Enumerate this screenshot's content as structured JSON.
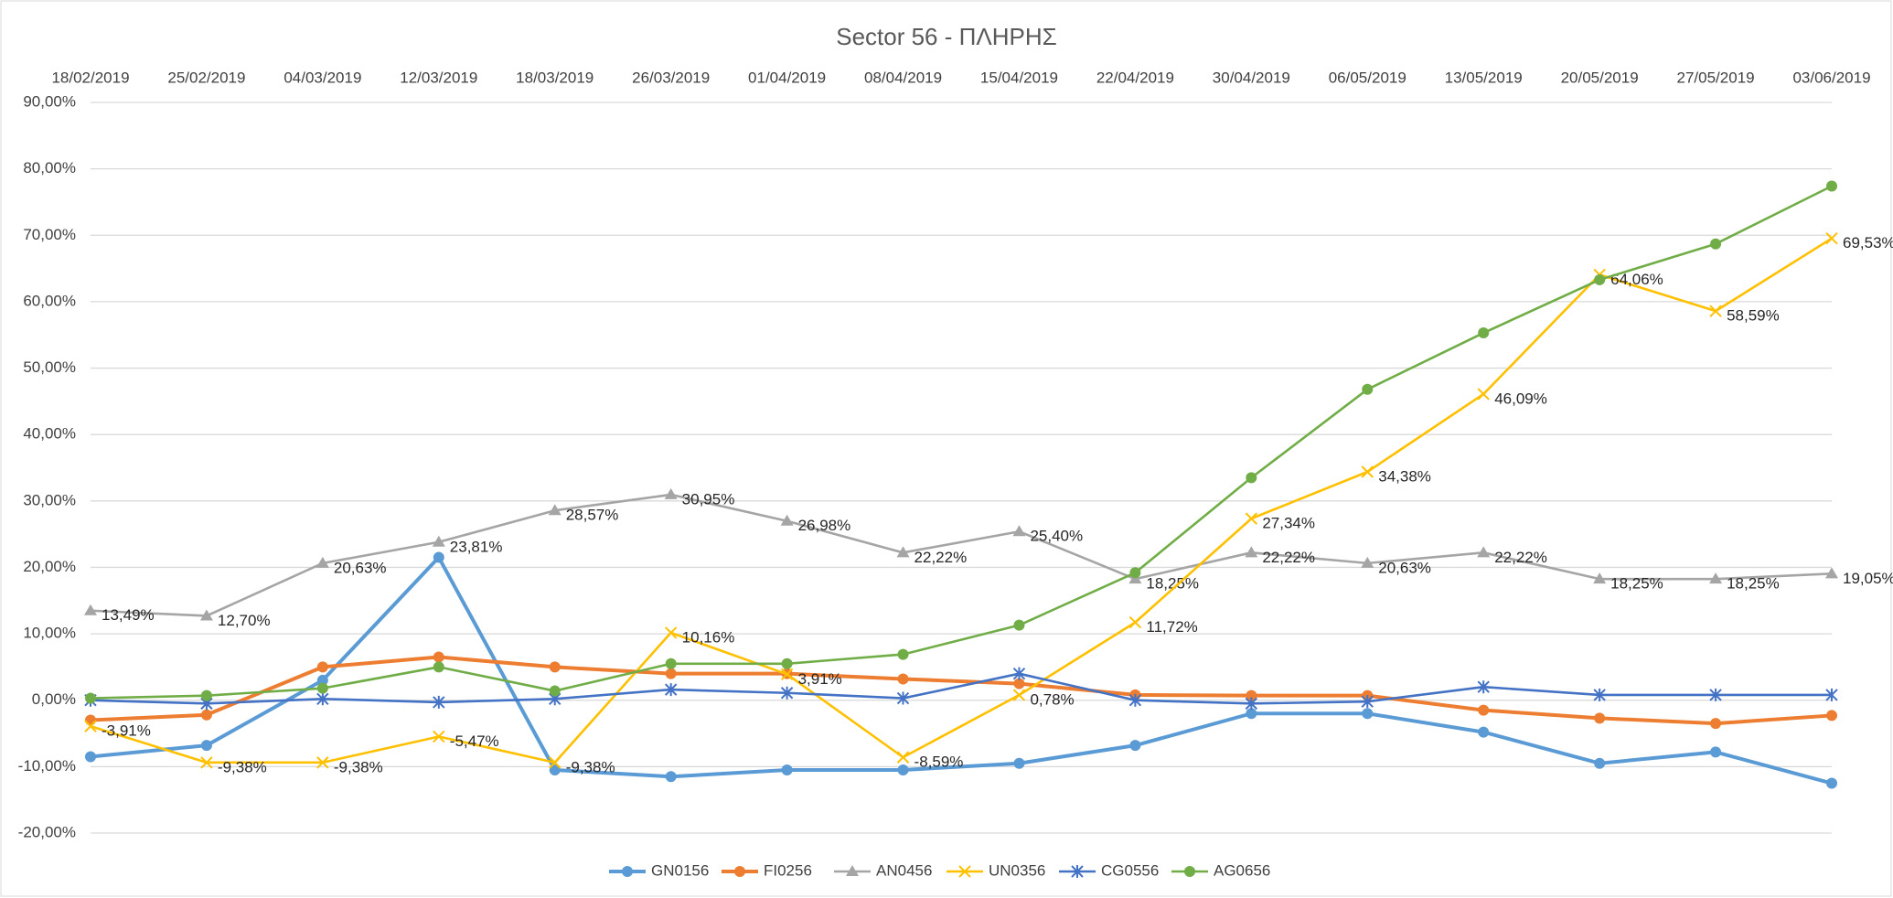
{
  "chart_data": {
    "type": "line",
    "title": "Sector 56 - ΠΛΗΡΗΣ",
    "categories": [
      "18/02/2019",
      "25/02/2019",
      "04/03/2019",
      "12/03/2019",
      "18/03/2019",
      "26/03/2019",
      "01/04/2019",
      "08/04/2019",
      "15/04/2019",
      "22/04/2019",
      "30/04/2019",
      "06/05/2019",
      "13/05/2019",
      "20/05/2019",
      "27/05/2019",
      "03/06/2019"
    ],
    "ylim": [
      -20,
      90
    ],
    "yticks": [
      {
        "value": -20,
        "label": "-20,00%"
      },
      {
        "value": -10,
        "label": "-10,00%"
      },
      {
        "value": 0,
        "label": "0,00%"
      },
      {
        "value": 10,
        "label": "10,00%"
      },
      {
        "value": 20,
        "label": "20,00%"
      },
      {
        "value": 30,
        "label": "30,00%"
      },
      {
        "value": 40,
        "label": "40,00%"
      },
      {
        "value": 50,
        "label": "50,00%"
      },
      {
        "value": 60,
        "label": "60,00%"
      },
      {
        "value": 70,
        "label": "70,00%"
      },
      {
        "value": 80,
        "label": "80,00%"
      },
      {
        "value": 90,
        "label": "90,00%"
      }
    ],
    "grid": true,
    "legend": "bottom",
    "series": [
      {
        "name": "GN0156",
        "color": "#5b9bd5",
        "marker": "circle",
        "values": [
          -8.5,
          -6.8,
          3,
          21.5,
          -10.5,
          -11.5,
          -10.5,
          -10.5,
          -9.5,
          -6.8,
          -2,
          -2,
          -4.8,
          -9.5,
          -7.8,
          -12.5
        ]
      },
      {
        "name": "FI0256",
        "color": "#ed7d31",
        "marker": "circle",
        "values": [
          -3,
          -2.2,
          5,
          6.5,
          5,
          4,
          4,
          3.2,
          2.5,
          0.8,
          0.7,
          0.7,
          -1.5,
          -2.7,
          -3.5,
          -2.3
        ]
      },
      {
        "name": "AN0456",
        "color": "#a5a5a5",
        "marker": "triangle",
        "values": [
          13.49,
          12.7,
          20.63,
          23.81,
          28.57,
          30.95,
          26.98,
          22.22,
          25.4,
          18.25,
          22.22,
          20.63,
          22.22,
          18.25,
          18.25,
          19.05
        ],
        "value_labels": [
          "13,49%",
          "12,70%",
          "20,63%",
          "23,81%",
          "28,57%",
          "30,95%",
          "26,98%",
          "22,22%",
          "25,40%",
          "18,25%",
          "22,22%",
          "20,63%",
          "22,22%",
          "18,25%",
          "18,25%",
          "19,05%"
        ]
      },
      {
        "name": "UN0356",
        "color": "#ffc000",
        "marker": "x",
        "values": [
          -3.91,
          -9.38,
          -9.38,
          -5.47,
          -9.38,
          10.16,
          3.91,
          -8.59,
          0.78,
          11.72,
          27.34,
          34.38,
          46.09,
          64.06,
          58.59,
          69.53
        ],
        "value_labels": [
          "-3,91%",
          "-9,38%",
          "-9,38%",
          "-5,47%",
          "-9,38%",
          "10,16%",
          "3,91%",
          "-8,59%",
          "0,78%",
          "11,72%",
          "27,34%",
          "34,38%",
          "46,09%",
          "64,06%",
          "58,59%",
          "69,53%"
        ]
      },
      {
        "name": "CG0556",
        "color": "#4472c4",
        "marker": "star",
        "values": [
          0,
          -0.5,
          0.2,
          -0.3,
          0.2,
          1.6,
          1.1,
          0.3,
          4,
          0,
          -0.5,
          -0.2,
          2,
          0.8,
          0.8,
          0.8
        ]
      },
      {
        "name": "AG0656",
        "color": "#70ad47",
        "marker": "circle",
        "values": [
          0.3,
          0.7,
          1.8,
          5,
          1.4,
          5.5,
          5.5,
          6.9,
          11.3,
          19.2,
          33.5,
          46.8,
          55.3,
          63.3,
          68.7,
          77.4
        ]
      }
    ]
  }
}
